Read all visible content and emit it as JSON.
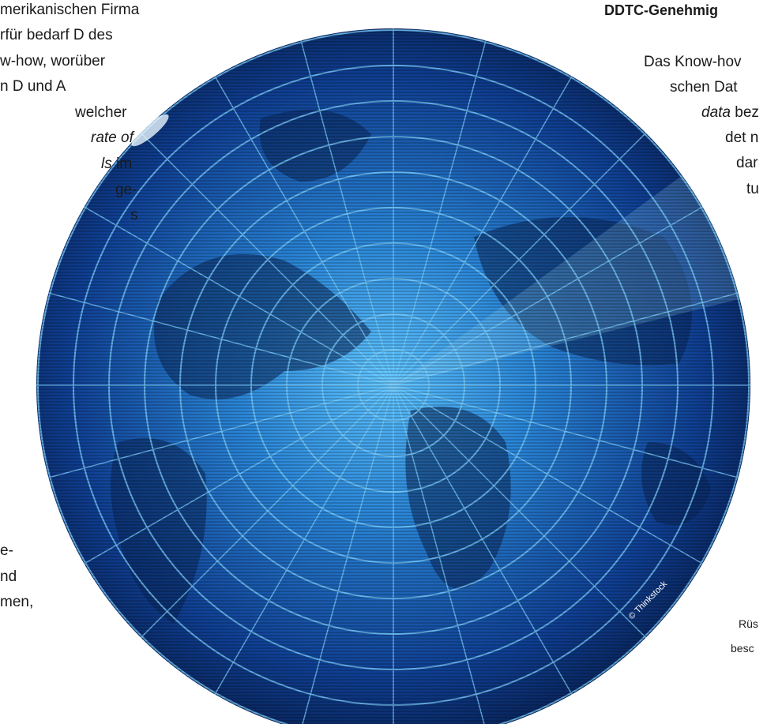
{
  "left_column": {
    "lines": [
      [
        {
          "text": "merikanischen Firma"
        }
      ],
      [
        {
          "text": "rfür bedarf D des"
        }
      ],
      [
        {
          "text": "w-how, worüber"
        }
      ],
      [
        {
          "text": "n D und A"
        }
      ],
      [
        {
          "text": "welcher"
        }
      ],
      [
        {
          "text": "rate of",
          "italic": true
        }
      ],
      [
        {
          "text": "ls",
          "italic": true
        },
        {
          "text": " im"
        }
      ],
      [
        {
          "text": "ge-"
        }
      ],
      [
        {
          "text": "s"
        }
      ],
      [
        {
          "text": "e-"
        }
      ],
      [
        {
          "text": "nd"
        }
      ],
      [
        {
          "text": "men,"
        }
      ]
    ]
  },
  "right_column": {
    "heading": "DDTC-Genehmig",
    "lines": [
      [
        {
          "text": "Das Know-hov"
        }
      ],
      [
        {
          "text": "schen Dat"
        }
      ],
      [
        {
          "text": "data",
          "italic": true
        },
        {
          "text": " bez"
        }
      ],
      [
        {
          "text": "det n"
        }
      ],
      [
        {
          "text": "dar"
        }
      ],
      [
        {
          "text": "tu"
        }
      ]
    ]
  },
  "caption_lines": [
    "Rüs",
    "besc"
  ],
  "image": {
    "credit": "© Thinkstock"
  }
}
